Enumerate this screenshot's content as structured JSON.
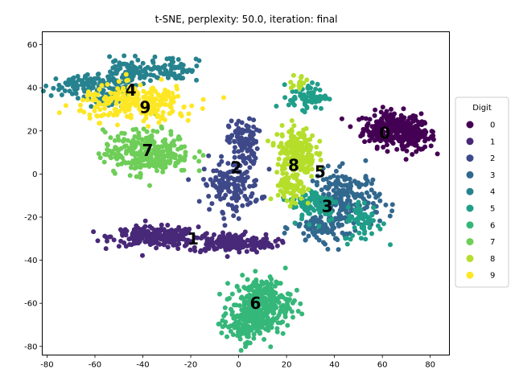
{
  "chart_data": {
    "type": "scatter",
    "title": "t-SNE, perplexity: 50.0, iteration: final",
    "xlim": [
      -82,
      88
    ],
    "ylim": [
      -84,
      66
    ],
    "xticks": [
      -80,
      -60,
      -40,
      -20,
      0,
      20,
      40,
      60,
      80
    ],
    "yticks": [
      -80,
      -60,
      -40,
      -20,
      0,
      20,
      40,
      60
    ],
    "grid": false,
    "legend": {
      "title": "Digit",
      "placement": "right"
    },
    "colors": [
      "#440154",
      "#482878",
      "#3e4989",
      "#31688e",
      "#26828e",
      "#1f9e89",
      "#35b779",
      "#6ece58",
      "#b5de2b",
      "#fde725"
    ],
    "series": [
      {
        "name": "0",
        "clusters": [
          {
            "cx": 64,
            "cy": 21,
            "sx": 6,
            "sy": 4,
            "n": 260
          },
          {
            "cx": 74,
            "cy": 17,
            "sx": 4,
            "sy": 3,
            "n": 80
          }
        ]
      },
      {
        "name": "1",
        "clusters": [
          {
            "cx": -35,
            "cy": -29,
            "sx": 9,
            "sy": 2.2,
            "n": 240
          },
          {
            "cx": -3,
            "cy": -32,
            "sx": 9,
            "sy": 2.2,
            "n": 200
          }
        ]
      },
      {
        "name": "2",
        "clusters": [
          {
            "cx": 2,
            "cy": 15,
            "sx": 3,
            "sy": 5,
            "n": 100
          },
          {
            "cx": -3,
            "cy": -5,
            "sx": 6,
            "sy": 6,
            "n": 150
          }
        ]
      },
      {
        "name": "3",
        "clusters": [
          {
            "cx": 45,
            "cy": -12,
            "sx": 7,
            "sy": 7,
            "n": 200
          },
          {
            "cx": 35,
            "cy": -25,
            "sx": 6,
            "sy": 4,
            "n": 80
          }
        ]
      },
      {
        "name": "4",
        "clusters": [
          {
            "cx": -45,
            "cy": 47,
            "sx": 6,
            "sy": 3,
            "n": 100
          },
          {
            "cx": -27,
            "cy": 49,
            "sx": 5,
            "sy": 3,
            "n": 60
          },
          {
            "cx": -68,
            "cy": 41,
            "sx": 7,
            "sy": 2.5,
            "n": 80
          },
          {
            "cx": -55,
            "cy": 37,
            "sx": 4,
            "sy": 4,
            "n": 60
          }
        ]
      },
      {
        "name": "5",
        "clusters": [
          {
            "cx": 29,
            "cy": 36,
            "sx": 4,
            "sy": 3,
            "n": 70
          },
          {
            "cx": 32,
            "cy": -14,
            "sx": 5,
            "sy": 4,
            "n": 90
          },
          {
            "cx": 52,
            "cy": -22,
            "sx": 4,
            "sy": 5,
            "n": 60
          }
        ]
      },
      {
        "name": "6",
        "clusters": [
          {
            "cx": 10,
            "cy": -60,
            "sx": 6,
            "sy": 6,
            "n": 260
          },
          {
            "cx": 2,
            "cy": -70,
            "sx": 5,
            "sy": 4,
            "n": 120
          }
        ]
      },
      {
        "name": "7",
        "clusters": [
          {
            "cx": -38,
            "cy": 10,
            "sx": 9,
            "sy": 5,
            "n": 280
          }
        ]
      },
      {
        "name": "8",
        "clusters": [
          {
            "cx": 24,
            "cy": 10,
            "sx": 4,
            "sy": 6,
            "n": 200
          },
          {
            "cx": 22,
            "cy": -8,
            "sx": 3,
            "sy": 4,
            "n": 60
          },
          {
            "cx": 25,
            "cy": 42,
            "sx": 2,
            "sy": 2,
            "n": 15
          }
        ]
      },
      {
        "name": "9",
        "clusters": [
          {
            "cx": -42,
            "cy": 33,
            "sx": 12,
            "sy": 4,
            "n": 260
          }
        ]
      }
    ],
    "annotations": [
      {
        "text": "0",
        "x": 61,
        "y": 19
      },
      {
        "text": "1",
        "x": -19,
        "y": -30
      },
      {
        "text": "2",
        "x": -1,
        "y": 3
      },
      {
        "text": "3",
        "x": 37,
        "y": -15
      },
      {
        "text": "4",
        "x": -45,
        "y": 39
      },
      {
        "text": "5",
        "x": 34,
        "y": 1
      },
      {
        "text": "6",
        "x": 7,
        "y": -60
      },
      {
        "text": "7",
        "x": -38,
        "y": 11
      },
      {
        "text": "8",
        "x": 23,
        "y": 4
      },
      {
        "text": "9",
        "x": -39,
        "y": 31
      }
    ]
  }
}
